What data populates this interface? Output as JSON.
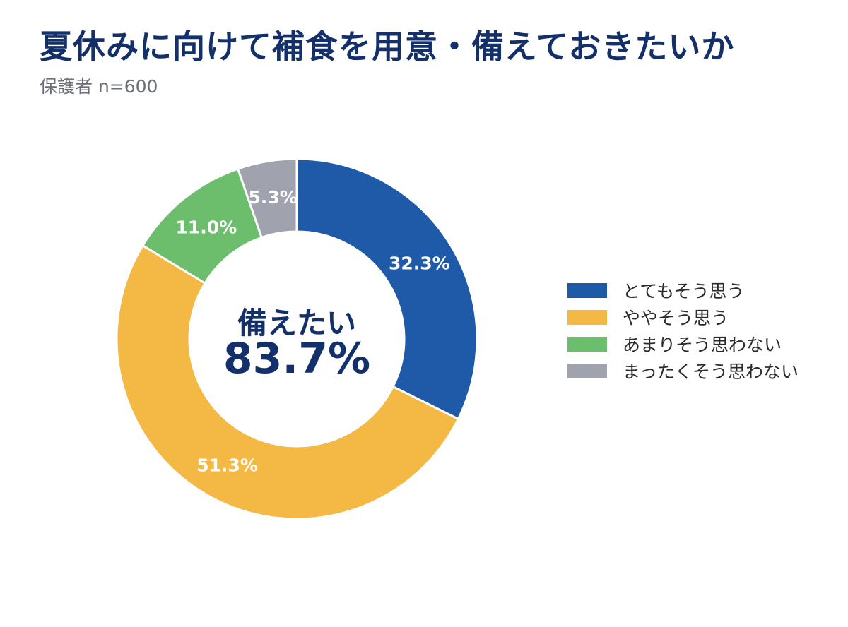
{
  "header": {
    "title": "夏休みに向けて補食を用意・備えておきたいか",
    "subtitle": "保護者 n=600"
  },
  "chart_data": {
    "type": "pie",
    "donut": true,
    "categories": [
      "とてもそう思う",
      "ややそう思う",
      "あまりそう思わない",
      "まったくそう思わない"
    ],
    "values": [
      32.3,
      51.3,
      11.0,
      5.3
    ],
    "value_labels": [
      "32.3%",
      "51.3%",
      "11.0%",
      "5.3%"
    ],
    "colors": [
      "#1f5aa8",
      "#f4b844",
      "#6cbd6c",
      "#a0a3ae"
    ],
    "center_caption": "備えたい",
    "center_value": "83.7%",
    "legend_position": "right"
  }
}
